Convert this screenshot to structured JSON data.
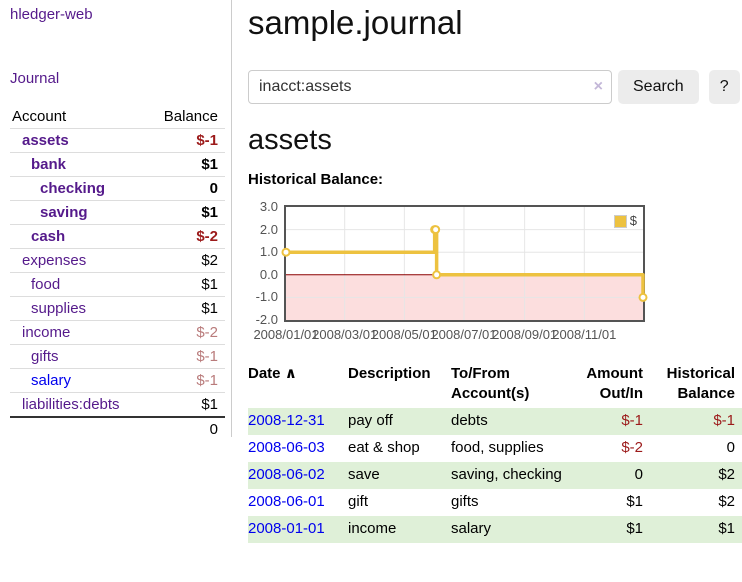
{
  "brand": "hledger-web",
  "nav": {
    "journal": "Journal"
  },
  "sidebar_table": {
    "headers": {
      "account": "Account",
      "balance": "Balance"
    },
    "rows": [
      {
        "account": "assets",
        "balance": "$-1"
      },
      {
        "account": "bank",
        "balance": "$1"
      },
      {
        "account": "checking",
        "balance": "0"
      },
      {
        "account": "saving",
        "balance": "$1"
      },
      {
        "account": "cash",
        "balance": "$-2"
      },
      {
        "account": "expenses",
        "balance": "$2"
      },
      {
        "account": "food",
        "balance": "$1"
      },
      {
        "account": "supplies",
        "balance": "$1"
      },
      {
        "account": "income",
        "balance": "$-2"
      },
      {
        "account": "gifts",
        "balance": "$-1"
      },
      {
        "account": "salary",
        "balance": "$-1"
      },
      {
        "account": "liabilities:debts",
        "balance": "$1"
      }
    ],
    "total": "0"
  },
  "page": {
    "title": "sample.journal",
    "account_heading": "assets",
    "chart_label": "Historical Balance:"
  },
  "search": {
    "value": "inacct:assets",
    "clear_icon": "×",
    "search_button": "Search",
    "help_button": "?"
  },
  "chart_data": {
    "type": "line",
    "title": "Historical Balance:",
    "style": "step",
    "x_range": [
      "2008-01-01",
      "2008-12-31"
    ],
    "ylim": [
      -2,
      3
    ],
    "yticks": [
      {
        "v": 3,
        "label": "3.0"
      },
      {
        "v": 2,
        "label": "2.0"
      },
      {
        "v": 1,
        "label": "1.0"
      },
      {
        "v": 0,
        "label": "0.0"
      },
      {
        "v": -1,
        "label": "-1.0"
      },
      {
        "v": -2,
        "label": "-2.0"
      }
    ],
    "xticks": [
      {
        "date": "2008-01-01",
        "label": "2008/01/01"
      },
      {
        "date": "2008-03-01",
        "label": "2008/03/01"
      },
      {
        "date": "2008-05-01",
        "label": "2008/05/01"
      },
      {
        "date": "2008-07-01",
        "label": "2008/07/01"
      },
      {
        "date": "2008-09-01",
        "label": "2008/09/01"
      },
      {
        "date": "2008-11-01",
        "label": "2008/11/01"
      }
    ],
    "series": [
      {
        "name": "$",
        "points": [
          [
            "2008-01-01",
            1
          ],
          [
            "2008-06-01",
            2
          ],
          [
            "2008-06-02",
            2
          ],
          [
            "2008-06-03",
            0
          ],
          [
            "2008-12-31",
            -1
          ]
        ]
      }
    ],
    "legend_position": "top-right",
    "grid": true,
    "colors": {
      "line": "#edc240",
      "marker_fill": "#ffffff",
      "negative_region": "#fcdede",
      "zero_line": "#8b0000",
      "grid": "#e6e6e6",
      "border": "#545454",
      "axis_text": "#545454"
    }
  },
  "register_table": {
    "headers": {
      "date": "Date",
      "sort_indicator": "∧",
      "description": "Description",
      "accounts": "To/From Account(s)",
      "amount": "Amount Out/In",
      "balance": "Historical Balance"
    },
    "rows": [
      {
        "date": "2008-12-31",
        "description": "pay off",
        "accounts": "debts",
        "amount": "$-1",
        "balance": "$-1"
      },
      {
        "date": "2008-06-03",
        "description": "eat & shop",
        "accounts": "food, supplies",
        "amount": "$-2",
        "balance": "0"
      },
      {
        "date": "2008-06-02",
        "description": "save",
        "accounts": "saving, checking",
        "amount": "0",
        "balance": "$2"
      },
      {
        "date": "2008-06-01",
        "description": "gift",
        "accounts": "gifts",
        "amount": "$1",
        "balance": "$2"
      },
      {
        "date": "2008-01-01",
        "description": "income",
        "accounts": "salary",
        "amount": "$1",
        "balance": "$1"
      }
    ]
  }
}
